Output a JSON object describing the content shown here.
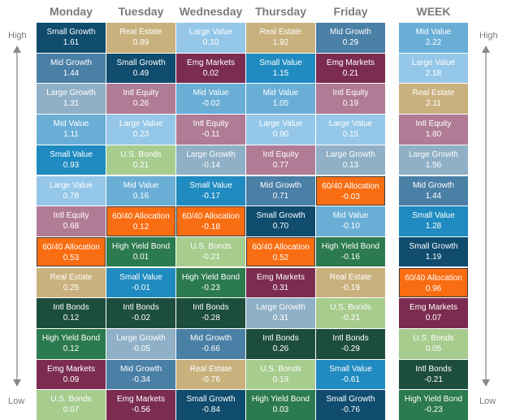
{
  "columns": [
    "Monday",
    "Tuesday",
    "Wednesday",
    "Thursday",
    "Friday",
    "WEEK"
  ],
  "side_labels": {
    "high": "High",
    "low": "Low"
  },
  "category_colors": {
    "Small Growth": "#0f4c6e",
    "Mid Growth": "#4a7fa6",
    "Large Growth": "#8fb0c6",
    "Mid Value": "#6aaed6",
    "Small Value": "#1f8bc0",
    "Large Value": "#95c7e8",
    "Intl Equity": "#b07b95",
    "60/40 Allocation": "#f96d12",
    "Real Estate": "#c9b17e",
    "Intl Bonds": "#1d4d3d",
    "High Yield Bond": "#2c7a4f",
    "Emg Markets": "#7b2c50",
    "U.S. Bonds": "#a6cc8e"
  },
  "highlight_category": "60/40 Allocation",
  "chart_data": {
    "type": "table",
    "columns": [
      {
        "name": "Monday",
        "items": [
          {
            "name": "Small Growth",
            "value": "1.61"
          },
          {
            "name": "Mid Growth",
            "value": "1.44"
          },
          {
            "name": "Large Growth",
            "value": "1.31"
          },
          {
            "name": "Mid Value",
            "value": "1.11"
          },
          {
            "name": "Small Value",
            "value": "0.93"
          },
          {
            "name": "Large Value",
            "value": "0.78"
          },
          {
            "name": "Intl Equity",
            "value": "0.68"
          },
          {
            "name": "60/40 Allocation",
            "value": "0.53"
          },
          {
            "name": "Real Estate",
            "value": "0.25"
          },
          {
            "name": "Intl Bonds",
            "value": "0.12"
          },
          {
            "name": "High Yield Bond",
            "value": "0.12"
          },
          {
            "name": "Emg Markets",
            "value": "0.09"
          },
          {
            "name": "U.S. Bonds",
            "value": "0.07"
          }
        ]
      },
      {
        "name": "Tuesday",
        "items": [
          {
            "name": "Real Estate",
            "value": "0.89"
          },
          {
            "name": "Small Growth",
            "value": "0.49"
          },
          {
            "name": "Intl Equity",
            "value": "0.26"
          },
          {
            "name": "Large Value",
            "value": "0.23"
          },
          {
            "name": "U.S. Bonds",
            "value": "0.21"
          },
          {
            "name": "Mid Value",
            "value": "0.16"
          },
          {
            "name": "60/40 Allocation",
            "value": "0.12"
          },
          {
            "name": "High Yield Bond",
            "value": "0.01"
          },
          {
            "name": "Small Value",
            "value": "-0.01"
          },
          {
            "name": "Intl Bonds",
            "value": "-0.02"
          },
          {
            "name": "Large Growth",
            "value": "-0.05"
          },
          {
            "name": "Mid Growth",
            "value": "-0.34"
          },
          {
            "name": "Emg Markets",
            "value": "-0.56"
          }
        ]
      },
      {
        "name": "Wednesday",
        "items": [
          {
            "name": "Large Value",
            "value": "0.10"
          },
          {
            "name": "Emg Markets",
            "value": "0.02"
          },
          {
            "name": "Mid Value",
            "value": "-0.02"
          },
          {
            "name": "Intl Equity",
            "value": "-0.11"
          },
          {
            "name": "Large Growth",
            "value": "-0.14"
          },
          {
            "name": "Small Value",
            "value": "-0.17"
          },
          {
            "name": "60/40 Allocation",
            "value": "-0.18"
          },
          {
            "name": "U.S. Bonds",
            "value": "-0.21"
          },
          {
            "name": "High Yield Bond",
            "value": "-0.23"
          },
          {
            "name": "Intl Bonds",
            "value": "-0.28"
          },
          {
            "name": "Mid Growth",
            "value": "-0.66"
          },
          {
            "name": "Real Estate",
            "value": "-0.76"
          },
          {
            "name": "Small Growth",
            "value": "-0.84"
          }
        ]
      },
      {
        "name": "Thursday",
        "items": [
          {
            "name": "Real Estate",
            "value": "1.92"
          },
          {
            "name": "Small Value",
            "value": "1.15"
          },
          {
            "name": "Mid Value",
            "value": "1.05"
          },
          {
            "name": "Large Value",
            "value": "0.90"
          },
          {
            "name": "Intl Equity",
            "value": "0.77"
          },
          {
            "name": "Mid Growth",
            "value": "0.71"
          },
          {
            "name": "Small Growth",
            "value": "0.70"
          },
          {
            "name": "60/40 Allocation",
            "value": "0.52"
          },
          {
            "name": "Emg Markets",
            "value": "0.31"
          },
          {
            "name": "Large Growth",
            "value": "0.31"
          },
          {
            "name": "Intl Bonds",
            "value": "0.26"
          },
          {
            "name": "U.S. Bonds",
            "value": "0.19"
          },
          {
            "name": "High Yield Bond",
            "value": "0.03"
          }
        ]
      },
      {
        "name": "Friday",
        "items": [
          {
            "name": "Mid Growth",
            "value": "0.29"
          },
          {
            "name": "Emg Markets",
            "value": "0.21"
          },
          {
            "name": "Intl Equity",
            "value": "0.19"
          },
          {
            "name": "Large Value",
            "value": "0.15"
          },
          {
            "name": "Large Growth",
            "value": "0.13"
          },
          {
            "name": "60/40 Allocation",
            "value": "-0.03"
          },
          {
            "name": "Mid Value",
            "value": "-0.10"
          },
          {
            "name": "High Yield Bond",
            "value": "-0.16"
          },
          {
            "name": "Real Estate",
            "value": "-0.19"
          },
          {
            "name": "U.S. Bonds",
            "value": "-0.21"
          },
          {
            "name": "Intl Bonds",
            "value": "-0.29"
          },
          {
            "name": "Small Value",
            "value": "-0.61"
          },
          {
            "name": "Small Growth",
            "value": "-0.76"
          }
        ]
      },
      {
        "name": "WEEK",
        "items": [
          {
            "name": "Mid Value",
            "value": "2.22"
          },
          {
            "name": "Large Value",
            "value": "2.18"
          },
          {
            "name": "Real Estate",
            "value": "2.11"
          },
          {
            "name": "Intl Equity",
            "value": "1.80"
          },
          {
            "name": "Large Growth",
            "value": "1.56"
          },
          {
            "name": "Mid Growth",
            "value": "1.44"
          },
          {
            "name": "Small Value",
            "value": "1.28"
          },
          {
            "name": "Small Growth",
            "value": "1.19"
          },
          {
            "name": "60/40 Allocation",
            "value": "0.96"
          },
          {
            "name": "Emg Markets",
            "value": "0.07"
          },
          {
            "name": "U.S. Bonds",
            "value": "0.05"
          },
          {
            "name": "Intl Bonds",
            "value": "-0.21"
          },
          {
            "name": "High Yield Bond",
            "value": "-0.23"
          }
        ]
      }
    ]
  }
}
